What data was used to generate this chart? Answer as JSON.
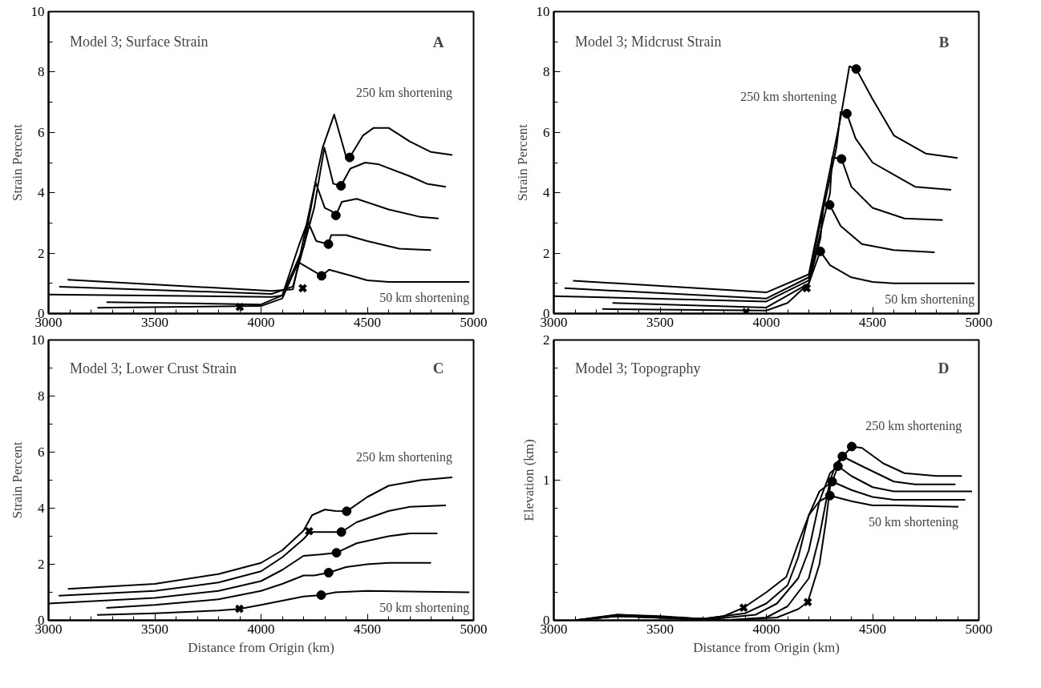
{
  "chart_data": [
    {
      "type": "line",
      "title": "Model 3; Surface Strain",
      "ylabel": "Strain Percent",
      "annotations": [
        "A"
      ],
      "xlim": [
        3000,
        5000
      ],
      "ylim": [
        0,
        10
      ],
      "xticks": [
        3000,
        {
          "value": 3100,
          "label": null
        },
        {
          "value": 3200,
          "label": null
        },
        {
          "value": 3300,
          "label": null
        },
        {
          "value": 3400,
          "label": null
        },
        3500,
        {
          "value": 3600,
          "label": null
        },
        {
          "value": 3700,
          "label": null
        },
        {
          "value": 3800,
          "label": null
        },
        {
          "value": 3900,
          "label": null
        },
        4000,
        {
          "value": 4100,
          "label": null
        },
        {
          "value": 4200,
          "label": null
        },
        {
          "value": 4300,
          "label": null
        },
        {
          "value": 4400,
          "label": null
        },
        4500,
        {
          "value": 4600,
          "label": null
        },
        {
          "value": 4700,
          "label": null
        },
        {
          "value": 4800,
          "label": null
        },
        {
          "value": 4900,
          "label": null
        },
        5000
      ],
      "yticks": [
        0,
        {
          "value": 1,
          "label": null
        },
        2,
        {
          "value": 3,
          "label": null
        },
        4,
        {
          "value": 5,
          "label": null
        },
        6,
        {
          "value": 7,
          "label": null
        },
        8,
        {
          "value": 9,
          "label": null
        },
        10
      ],
      "grid": false,
      "legend": false,
      "line_style": "solid",
      "series": [
        {
          "name": "50 km shortening",
          "color": "#000000",
          "x": [
            3230,
            4000,
            4100,
            4176,
            4285,
            4320,
            4400,
            4500,
            4600,
            4980
          ],
          "values": [
            0.19,
            0.25,
            0.5,
            1.7,
            1.25,
            1.45,
            1.3,
            1.1,
            1.05,
            1.05
          ]
        },
        {
          "color": "#000000",
          "x": [
            3273,
            4000,
            4100,
            4180,
            4220,
            4260,
            4317,
            4330,
            4400,
            4500,
            4650,
            4800
          ],
          "values": [
            0.38,
            0.3,
            0.6,
            2.3,
            3.05,
            2.4,
            2.3,
            2.6,
            2.6,
            2.4,
            2.15,
            2.1
          ]
        },
        {
          "color": "#000000",
          "x": [
            3000,
            4050,
            4100,
            4200,
            4257,
            4300,
            4330,
            4352,
            4380,
            4450,
            4600,
            4750,
            4835
          ],
          "values": [
            0.63,
            0.55,
            0.6,
            2.2,
            4.34,
            3.5,
            3.4,
            3.25,
            3.7,
            3.8,
            3.45,
            3.2,
            3.15
          ]
        },
        {
          "color": "#000000",
          "x": [
            3050,
            4050,
            4150,
            4250,
            4298,
            4340,
            4376,
            4420,
            4490,
            4550,
            4700,
            4780,
            4870
          ],
          "values": [
            0.89,
            0.65,
            0.9,
            3.5,
            5.5,
            4.3,
            4.23,
            4.8,
            5.0,
            4.95,
            4.55,
            4.3,
            4.2
          ]
        },
        {
          "name": "250 km shortening",
          "color": "#000000",
          "x": [
            3090,
            4050,
            4150,
            4290,
            4344,
            4400,
            4417,
            4480,
            4530,
            4600,
            4700,
            4800,
            4900
          ],
          "values": [
            1.12,
            0.75,
            0.8,
            5.5,
            6.59,
            5.2,
            5.17,
            5.9,
            6.15,
            6.15,
            5.7,
            5.35,
            5.25
          ]
        },
        {
          "type": "scatter",
          "marker": "circle",
          "color": "#000000",
          "x": [
            4285,
            4317,
            4352,
            4376,
            4417
          ],
          "values": [
            1.25,
            2.3,
            3.25,
            4.23,
            5.17
          ]
        },
        {
          "type": "scatter",
          "marker": "cross",
          "color": "#000000",
          "x": [
            3900,
            4196
          ],
          "values": [
            0.22,
            0.84
          ]
        }
      ]
    },
    {
      "type": "line",
      "title": "Model 3; Midcrust Strain",
      "ylabel": "Strain Percent",
      "annotations": [
        "B"
      ],
      "xlim": [
        3000,
        5000
      ],
      "ylim": [
        0,
        10
      ],
      "xticks": [
        3000,
        {
          "value": 3100,
          "label": null
        },
        {
          "value": 3200,
          "label": null
        },
        {
          "value": 3300,
          "label": null
        },
        {
          "value": 3400,
          "label": null
        },
        3500,
        {
          "value": 3600,
          "label": null
        },
        {
          "value": 3700,
          "label": null
        },
        {
          "value": 3800,
          "label": null
        },
        {
          "value": 3900,
          "label": null
        },
        4000,
        {
          "value": 4100,
          "label": null
        },
        {
          "value": 4200,
          "label": null
        },
        {
          "value": 4300,
          "label": null
        },
        {
          "value": 4400,
          "label": null
        },
        4500,
        {
          "value": 4600,
          "label": null
        },
        {
          "value": 4700,
          "label": null
        },
        {
          "value": 4800,
          "label": null
        },
        {
          "value": 4900,
          "label": null
        },
        5000
      ],
      "yticks": [
        0,
        {
          "value": 1,
          "label": null
        },
        2,
        {
          "value": 3,
          "label": null
        },
        4,
        {
          "value": 5,
          "label": null
        },
        6,
        {
          "value": 7,
          "label": null
        },
        8,
        {
          "value": 9,
          "label": null
        },
        10
      ],
      "grid": false,
      "legend": false,
      "line_style": "solid",
      "series": [
        {
          "name": "50 km shortening",
          "color": "#000000",
          "x": [
            3228,
            4000,
            4100,
            4200,
            4254,
            4300,
            4400,
            4500,
            4600,
            4980
          ],
          "values": [
            0.15,
            0.1,
            0.35,
            1.0,
            2.06,
            1.6,
            1.2,
            1.05,
            1.0,
            1.0
          ]
        },
        {
          "color": "#000000",
          "x": [
            3276,
            4000,
            4200,
            4255,
            4270,
            4298,
            4350,
            4450,
            4600,
            4792
          ],
          "values": [
            0.35,
            0.2,
            1.0,
            2.5,
            3.62,
            3.6,
            2.9,
            2.3,
            2.1,
            2.03
          ]
        },
        {
          "color": "#000000",
          "x": [
            3000,
            4000,
            4200,
            4300,
            4310,
            4354,
            4400,
            4500,
            4650,
            4830
          ],
          "values": [
            0.58,
            0.4,
            1.1,
            4.0,
            5.18,
            5.12,
            4.2,
            3.5,
            3.15,
            3.1
          ]
        },
        {
          "color": "#000000",
          "x": [
            3051,
            4000,
            4200,
            4330,
            4350,
            4379,
            4420,
            4500,
            4600,
            4700,
            4870
          ],
          "values": [
            0.84,
            0.5,
            1.2,
            5.5,
            6.68,
            6.62,
            5.8,
            5.0,
            4.6,
            4.2,
            4.1
          ]
        },
        {
          "name": "250 km shortening",
          "color": "#000000",
          "x": [
            3091,
            4000,
            4200,
            4350,
            4391,
            4423,
            4500,
            4600,
            4750,
            4900
          ],
          "values": [
            1.09,
            0.7,
            1.3,
            6.5,
            8.19,
            8.1,
            7.1,
            5.9,
            5.3,
            5.15
          ]
        },
        {
          "type": "scatter",
          "marker": "circle",
          "color": "#000000",
          "x": [
            4254,
            4298,
            4354,
            4379,
            4423
          ],
          "values": [
            2.06,
            3.6,
            5.12,
            6.62,
            8.1
          ]
        },
        {
          "type": "scatter",
          "marker": "cross",
          "color": "#000000",
          "x": [
            3905,
            4190
          ],
          "values": [
            0.05,
            0.84
          ]
        }
      ]
    },
    {
      "type": "line",
      "title": "Model 3; Lower Crust Strain",
      "xlabel": "Distance from Origin (km)",
      "ylabel": "Strain Percent",
      "annotations": [
        "C"
      ],
      "xlim": [
        3000,
        5000
      ],
      "ylim": [
        0,
        10
      ],
      "xticks": [
        3000,
        {
          "value": 3100,
          "label": null
        },
        {
          "value": 3200,
          "label": null
        },
        {
          "value": 3300,
          "label": null
        },
        {
          "value": 3400,
          "label": null
        },
        3500,
        {
          "value": 3600,
          "label": null
        },
        {
          "value": 3700,
          "label": null
        },
        {
          "value": 3800,
          "label": null
        },
        {
          "value": 3900,
          "label": null
        },
        4000,
        {
          "value": 4100,
          "label": null
        },
        {
          "value": 4200,
          "label": null
        },
        {
          "value": 4300,
          "label": null
        },
        {
          "value": 4400,
          "label": null
        },
        4500,
        {
          "value": 4600,
          "label": null
        },
        {
          "value": 4700,
          "label": null
        },
        {
          "value": 4800,
          "label": null
        },
        {
          "value": 4900,
          "label": null
        },
        5000
      ],
      "yticks": [
        0,
        {
          "value": 1,
          "label": null
        },
        2,
        {
          "value": 3,
          "label": null
        },
        4,
        {
          "value": 5,
          "label": null
        },
        6,
        {
          "value": 7,
          "label": null
        },
        8,
        {
          "value": 9,
          "label": null
        },
        10
      ],
      "grid": false,
      "legend": false,
      "line_style": "solid",
      "series": [
        {
          "name": "50 km shortening",
          "color": "#000000",
          "x": [
            3229,
            3500,
            3800,
            3898,
            4000,
            4100,
            4200,
            4283,
            4350,
            4500,
            4980
          ],
          "values": [
            0.19,
            0.25,
            0.35,
            0.41,
            0.55,
            0.7,
            0.85,
            0.9,
            1.0,
            1.05,
            1.0
          ]
        },
        {
          "color": "#000000",
          "x": [
            3272,
            3500,
            3800,
            4000,
            4100,
            4200,
            4250,
            4318,
            4400,
            4500,
            4600,
            4800
          ],
          "values": [
            0.44,
            0.55,
            0.75,
            1.05,
            1.3,
            1.6,
            1.6,
            1.7,
            1.9,
            2.0,
            2.05,
            2.05
          ]
        },
        {
          "color": "#000000",
          "x": [
            3000,
            3500,
            3800,
            4000,
            4100,
            4200,
            4280,
            4355,
            4450,
            4600,
            4700,
            4830
          ],
          "values": [
            0.6,
            0.8,
            1.05,
            1.4,
            1.8,
            2.3,
            2.35,
            2.41,
            2.75,
            3.0,
            3.1,
            3.1
          ]
        },
        {
          "color": "#000000",
          "x": [
            3048,
            3500,
            3800,
            4000,
            4100,
            4200,
            4230,
            4300,
            4378,
            4450,
            4600,
            4700,
            4870
          ],
          "values": [
            0.88,
            1.05,
            1.35,
            1.75,
            2.25,
            2.9,
            3.15,
            3.15,
            3.15,
            3.5,
            3.9,
            4.05,
            4.1
          ]
        },
        {
          "name": "250 km shortening",
          "color": "#000000",
          "x": [
            3091,
            3500,
            3800,
            4000,
            4100,
            4200,
            4240,
            4300,
            4350,
            4403,
            4500,
            4600,
            4750,
            4900
          ],
          "values": [
            1.12,
            1.3,
            1.65,
            2.05,
            2.5,
            3.2,
            3.75,
            3.95,
            3.9,
            3.89,
            4.4,
            4.8,
            5.0,
            5.1
          ]
        },
        {
          "type": "scatter",
          "marker": "circle",
          "color": "#000000",
          "x": [
            4283,
            4318,
            4355,
            4378,
            4403
          ],
          "values": [
            0.9,
            1.7,
            2.41,
            3.15,
            3.89
          ]
        },
        {
          "type": "scatter",
          "marker": "cross",
          "color": "#000000",
          "x": [
            3898,
            4226
          ],
          "values": [
            0.41,
            3.18
          ]
        }
      ]
    },
    {
      "type": "line",
      "title": "Model 3; Topography",
      "xlabel": "Distance from Origin (km)",
      "ylabel": "Elevation (km)",
      "annotations": [
        "D"
      ],
      "xlim": [
        3000,
        5000
      ],
      "ylim": [
        0,
        2
      ],
      "xticks": [
        3000,
        {
          "value": 3100,
          "label": null
        },
        {
          "value": 3200,
          "label": null
        },
        {
          "value": 3300,
          "label": null
        },
        {
          "value": 3400,
          "label": null
        },
        3500,
        {
          "value": 3600,
          "label": null
        },
        {
          "value": 3700,
          "label": null
        },
        {
          "value": 3800,
          "label": null
        },
        {
          "value": 3900,
          "label": null
        },
        4000,
        {
          "value": 4100,
          "label": null
        },
        {
          "value": 4200,
          "label": null
        },
        {
          "value": 4300,
          "label": null
        },
        {
          "value": 4400,
          "label": null
        },
        4500,
        {
          "value": 4600,
          "label": null
        },
        {
          "value": 4700,
          "label": null
        },
        {
          "value": 4800,
          "label": null
        },
        {
          "value": 4900,
          "label": null
        },
        5000
      ],
      "yticks": [
        0,
        {
          "value": 0.2,
          "label": null
        },
        {
          "value": 0.4,
          "label": null
        },
        {
          "value": 0.6,
          "label": null
        },
        {
          "value": 0.8,
          "label": null
        },
        1,
        {
          "value": 1.2,
          "label": null
        },
        {
          "value": 1.4,
          "label": null
        },
        {
          "value": 1.6,
          "label": null
        },
        {
          "value": 1.8,
          "label": null
        },
        2
      ],
      "grid": false,
      "legend": false,
      "line_style": "solid",
      "series": [
        {
          "name": "50 km shortening",
          "color": "#000000",
          "x": [
            3100,
            3300,
            3500,
            3700,
            3800,
            3893,
            4000,
            4094,
            4150,
            4200,
            4250,
            4299,
            4400,
            4500,
            4600,
            4904
          ],
          "values": [
            0.0,
            0.04,
            0.03,
            0.01,
            0.03,
            0.09,
            0.2,
            0.31,
            0.55,
            0.75,
            0.85,
            0.89,
            0.85,
            0.82,
            0.82,
            0.81
          ]
        },
        {
          "color": "#000000",
          "x": [
            3100,
            3300,
            3700,
            3900,
            4000,
            4100,
            4150,
            4200,
            4250,
            4310,
            4400,
            4500,
            4600,
            4936
          ],
          "values": [
            0.0,
            0.04,
            0.01,
            0.05,
            0.12,
            0.25,
            0.45,
            0.75,
            0.92,
            0.99,
            0.93,
            0.88,
            0.86,
            0.86
          ]
        },
        {
          "color": "#000000",
          "x": [
            3100,
            3300,
            3750,
            3950,
            4050,
            4150,
            4200,
            4250,
            4300,
            4337,
            4400,
            4500,
            4600,
            4968
          ],
          "values": [
            0.0,
            0.03,
            0.01,
            0.04,
            0.12,
            0.3,
            0.5,
            0.85,
            1.05,
            1.1,
            1.03,
            0.95,
            0.92,
            0.92
          ]
        },
        {
          "color": "#000000",
          "x": [
            3100,
            3300,
            3800,
            4000,
            4100,
            4200,
            4250,
            4300,
            4330,
            4358,
            4450,
            4600,
            4700,
            4890
          ],
          "values": [
            0.0,
            0.03,
            0.0,
            0.02,
            0.1,
            0.3,
            0.6,
            1.0,
            1.12,
            1.17,
            1.1,
            0.99,
            0.97,
            0.97
          ]
        },
        {
          "name": "250 km shortening",
          "color": "#000000",
          "x": [
            3100,
            3300,
            3800,
            4050,
            4150,
            4195,
            4250,
            4280,
            4300,
            4350,
            4402,
            4450,
            4550,
            4650,
            4800,
            4920
          ],
          "values": [
            0.0,
            0.03,
            0.0,
            0.02,
            0.08,
            0.13,
            0.4,
            0.7,
            0.95,
            1.15,
            1.24,
            1.23,
            1.12,
            1.05,
            1.03,
            1.03
          ]
        },
        {
          "type": "scatter",
          "marker": "circle",
          "color": "#000000",
          "x": [
            4299,
            4310,
            4337,
            4358,
            4402
          ],
          "values": [
            0.89,
            0.99,
            1.1,
            1.17,
            1.24
          ]
        },
        {
          "type": "scatter",
          "marker": "cross",
          "color": "#000000",
          "x": [
            3893,
            4195
          ],
          "values": [
            0.09,
            0.13
          ]
        }
      ]
    }
  ]
}
